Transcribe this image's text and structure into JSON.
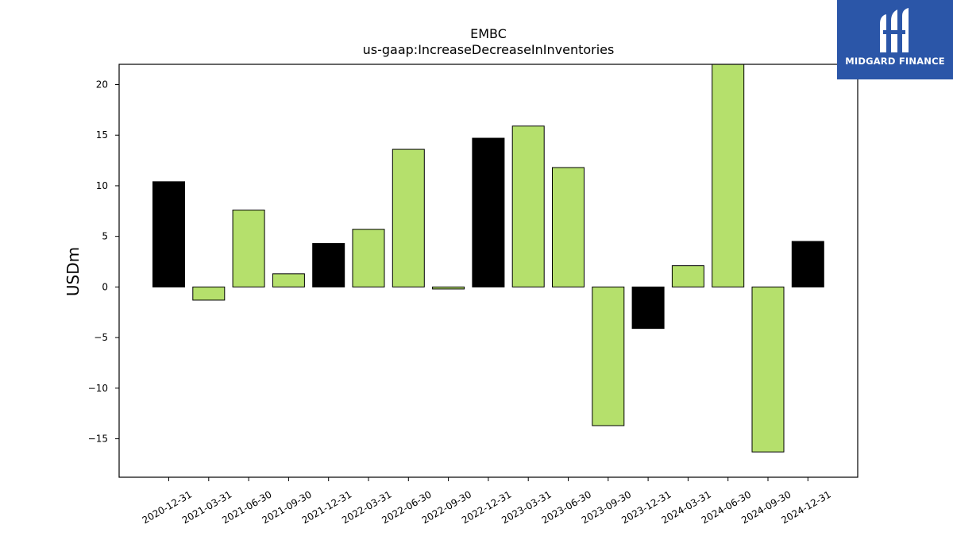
{
  "chart_data": {
    "type": "bar",
    "title": "EMBC",
    "subtitle": "us-gaap:IncreaseDecreaseInInventories",
    "xlabel": "",
    "ylabel": "USDm",
    "ylim": [
      -18.8,
      22
    ],
    "yticks": [
      -15,
      -10,
      -5,
      0,
      5,
      10,
      15,
      20
    ],
    "ytick_labels": [
      "−15",
      "−10",
      "−5",
      "0",
      "5",
      "10",
      "15",
      "20"
    ],
    "grid": false,
    "categories": [
      "2020-12-31",
      "2021-03-31",
      "2021-06-30",
      "2021-09-30",
      "2021-12-31",
      "2022-03-31",
      "2022-06-30",
      "2022-09-30",
      "2022-12-31",
      "2023-03-31",
      "2023-06-30",
      "2023-09-30",
      "2023-12-31",
      "2024-03-31",
      "2024-06-30",
      "2024-09-30",
      "2024-12-31"
    ],
    "values": [
      10.4,
      -1.3,
      7.6,
      1.3,
      4.3,
      5.7,
      13.6,
      -0.2,
      14.7,
      15.9,
      11.8,
      -13.7,
      -4.1,
      2.1,
      22.0,
      -16.3,
      4.5
    ],
    "colors": [
      "#000000",
      "#b5e06c",
      "#b5e06c",
      "#b5e06c",
      "#000000",
      "#b5e06c",
      "#b5e06c",
      "#b5e06c",
      "#000000",
      "#b5e06c",
      "#b5e06c",
      "#b5e06c",
      "#000000",
      "#b5e06c",
      "#b5e06c",
      "#b5e06c",
      "#000000"
    ]
  },
  "logo": {
    "text": "MIDGARD FINANCE",
    "background": "#2b56a8"
  }
}
